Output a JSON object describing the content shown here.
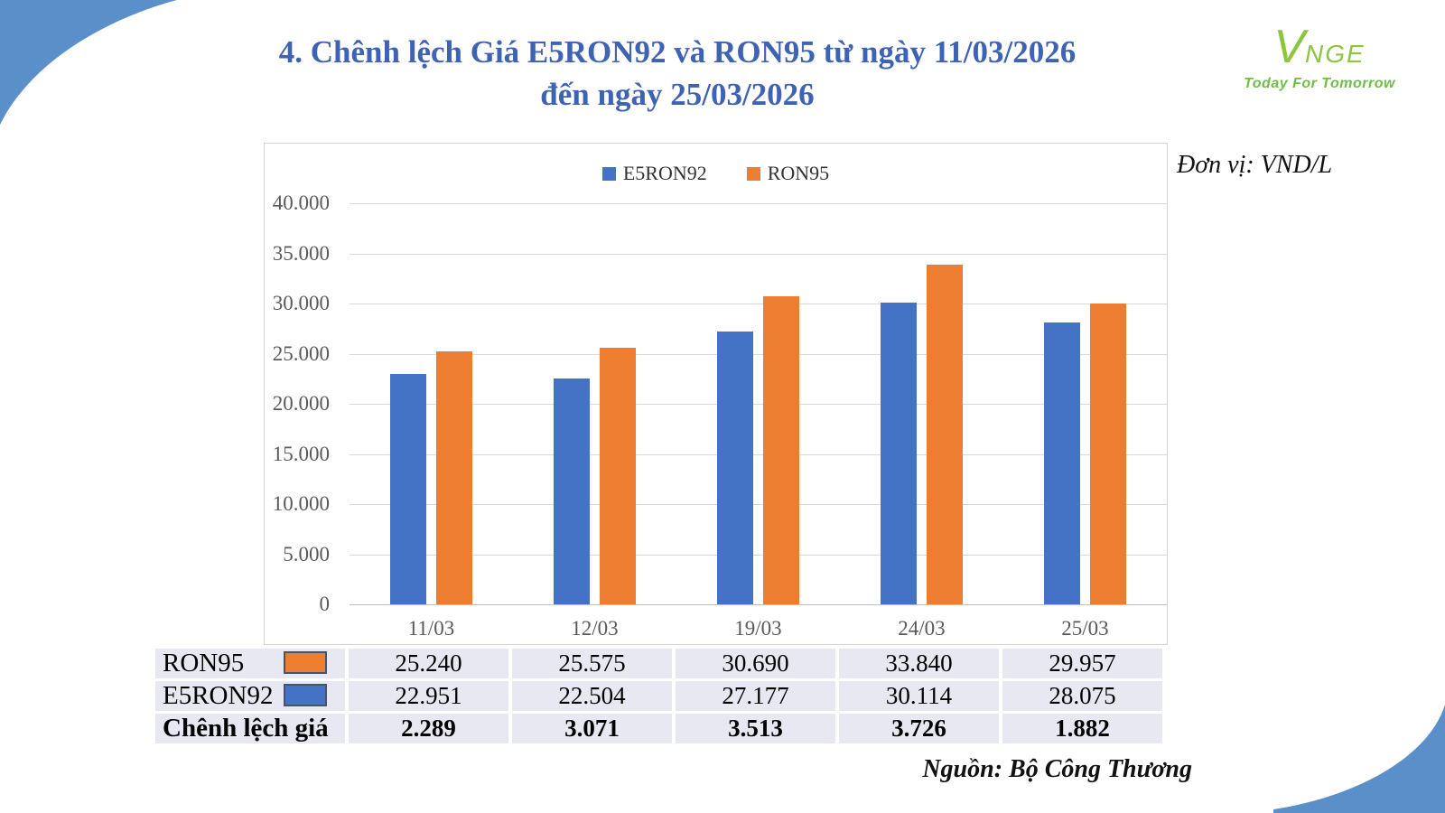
{
  "title": {
    "line1": "4. Chênh lệch Giá E5RON92 và RON95 từ ngày 11/03/2026",
    "line2": "đến ngày 25/03/2026"
  },
  "logo": {
    "v": "V",
    "name": "NGE",
    "tagline": "Today For Tomorrow"
  },
  "unit_label": "Đơn vị: VND/L",
  "source_label": "Nguồn: Bộ Công Thương",
  "chart_data": {
    "type": "bar",
    "categories": [
      "11/03",
      "12/03",
      "19/03",
      "24/03",
      "25/03"
    ],
    "series": [
      {
        "name": "E5RON92",
        "color": "#4472C4",
        "values": [
          22951,
          22504,
          27177,
          30114,
          28075
        ]
      },
      {
        "name": "RON95",
        "color": "#ED7D31",
        "values": [
          25240,
          25575,
          30690,
          33840,
          29957
        ]
      }
    ],
    "title": "",
    "xlabel": "",
    "ylabel": "",
    "unit": "VND/L",
    "ylim": [
      0,
      40000
    ],
    "ytick_step": 5000,
    "ytick_labels": [
      "0",
      "5.000",
      "10.000",
      "15.000",
      "20.000",
      "25.000",
      "30.000",
      "35.000",
      "40.000"
    ],
    "grid": true,
    "legend_position": "top-center"
  },
  "table": {
    "rows": [
      {
        "label": "RON95",
        "swatch_color": "#ED7D31",
        "bold": false,
        "values": [
          "25.240",
          "25.575",
          "30.690",
          "33.840",
          "29.957"
        ]
      },
      {
        "label": "E5RON92",
        "swatch_color": "#4472C4",
        "bold": false,
        "values": [
          "22.951",
          "22.504",
          "27.177",
          "30.114",
          "28.075"
        ]
      },
      {
        "label": "Chênh lệch giá",
        "swatch_color": null,
        "bold": true,
        "values": [
          "2.289",
          "3.071",
          "3.513",
          "3.726",
          "1.882"
        ]
      }
    ]
  },
  "colors": {
    "title_blue": "#3E62B4",
    "bar_blue": "#4472C4",
    "bar_orange": "#ED7D31",
    "corner_blue": "#5B8FC9",
    "logo_green": "#8CC63F",
    "tagline_green": "#6FBF44",
    "table_cell_bg": "#E8E8F2",
    "swatch_border": "#44546A",
    "gridline": "#D9D9D9",
    "axis_text": "#595959"
  }
}
